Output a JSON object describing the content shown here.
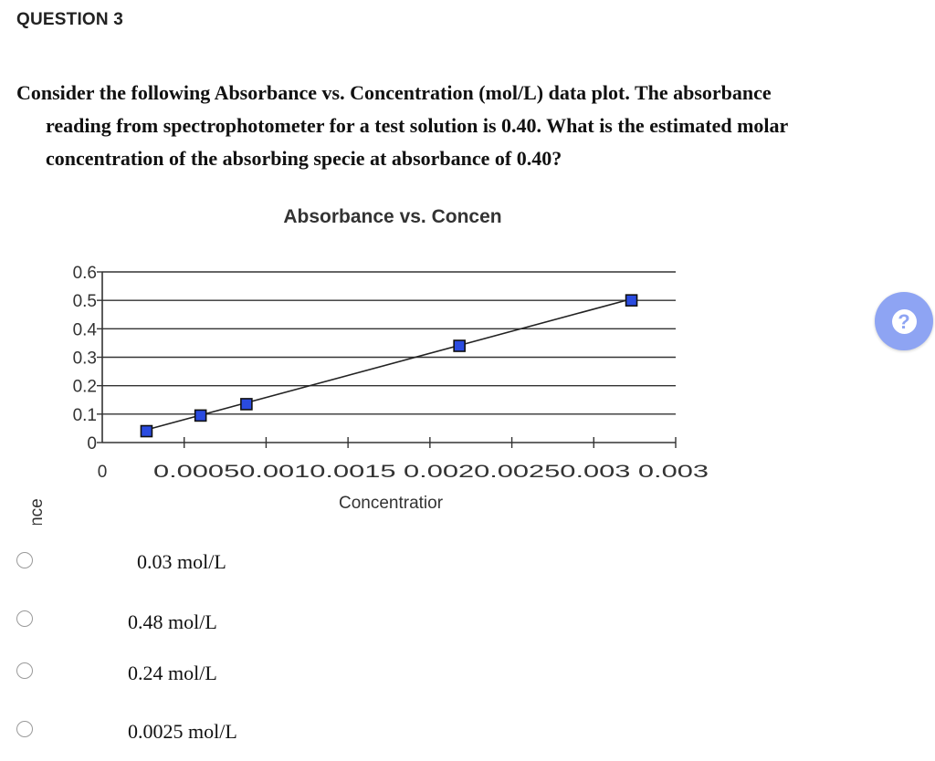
{
  "question": {
    "title": "QUESTION 3",
    "prompt_lines": [
      "Consider the following Absorbance vs. Concentration (mol/L) data plot. The absorbance",
      "reading from spectrophotometer for a test solution is 0.40. What is the estimated molar",
      "concentration of the absorbing specie at absorbance of 0.40?"
    ]
  },
  "chart_data": {
    "type": "scatter",
    "title": "Absorbance vs. Concen",
    "xlabel": "Concentratior",
    "ylabel": "Absorbance",
    "xlim": [
      0,
      0.0035
    ],
    "ylim": [
      0,
      0.6
    ],
    "x_tick_labels": [
      "0",
      "0.0005",
      "0.001",
      "0.0015",
      "0.002",
      "0.0025",
      "0.003",
      "0.003"
    ],
    "y_tick_labels": [
      "0",
      "0.1",
      "0.2",
      "0.3",
      "0.4",
      "0.5",
      "0.6"
    ],
    "y_ticks": [
      0,
      0.1,
      0.2,
      0.3,
      0.4,
      0.5,
      0.6
    ],
    "grid": "horizontal",
    "points": [
      {
        "x": 0.00027,
        "y": 0.04
      },
      {
        "x": 0.0006,
        "y": 0.095
      },
      {
        "x": 0.00088,
        "y": 0.135
      },
      {
        "x": 0.00218,
        "y": 0.34
      },
      {
        "x": 0.00323,
        "y": 0.5
      }
    ],
    "trendline": [
      {
        "x": 0.00027,
        "y": 0.045
      },
      {
        "x": 0.00323,
        "y": 0.505
      }
    ],
    "marker_color": "#2a4be0",
    "line_color": "#222222"
  },
  "options": [
    {
      "label": "0.03 mol/L",
      "selected": false
    },
    {
      "label": "0.48 mol/L",
      "selected": false
    },
    {
      "label": "0.24 mol/L",
      "selected": false
    },
    {
      "label": "0.0025 mol/L",
      "selected": false
    }
  ],
  "help": {
    "icon": "question-mark-icon",
    "glyph": "?",
    "color": "#8ea4f3"
  }
}
